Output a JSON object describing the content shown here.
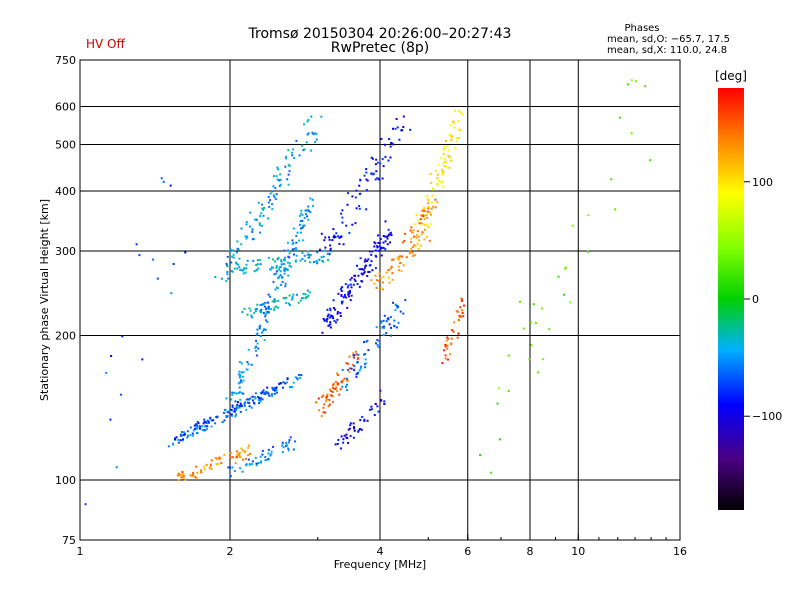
{
  "status": {
    "hv": "HV Off",
    "hv_color": "#cc0000"
  },
  "chart_data": {
    "type": "scatter",
    "title": "Tromsø 20150304 20:26:00–20:27:43",
    "subtitle": "RwPretec (8p)",
    "xlabel": "Frequency [MHz]",
    "ylabel": "Stationary phase Virtual Height [km]",
    "x_scale": "log",
    "y_scale": "log",
    "xlim": [
      1,
      16
    ],
    "ylim": [
      75,
      750
    ],
    "x_ticks": [
      {
        "value": 1,
        "label": "1"
      },
      {
        "value": 2,
        "label": "2"
      },
      {
        "value": 4,
        "label": "4"
      },
      {
        "value": 6,
        "label": "6"
      },
      {
        "value": 8,
        "label": "8"
      },
      {
        "value": 10,
        "label": "10"
      },
      {
        "value": 16,
        "label": "16"
      }
    ],
    "x_grid": [
      2,
      4,
      6,
      8,
      10
    ],
    "y_ticks": [
      {
        "value": 75,
        "label": "75"
      },
      {
        "value": 100,
        "label": "100"
      },
      {
        "value": 200,
        "label": "200"
      },
      {
        "value": 300,
        "label": "300"
      },
      {
        "value": 400,
        "label": "400"
      },
      {
        "value": 500,
        "label": "500"
      },
      {
        "value": 600,
        "label": "600"
      },
      {
        "value": 750,
        "label": "750"
      }
    ],
    "y_grid": [
      100,
      200,
      300,
      400,
      500,
      600
    ],
    "stats": {
      "heading": "Phases",
      "line1": "mean, sd,O: −65.7, 17.5",
      "line2": "mean, sd,X: 110.0, 24.8"
    },
    "colorbar": {
      "label": "[deg]",
      "range": [
        -180,
        180
      ],
      "ticks": [
        {
          "value": 100,
          "label": "100"
        },
        {
          "value": 0,
          "label": "0"
        },
        {
          "value": -100,
          "label": "−100"
        }
      ]
    },
    "series": [
      {
        "name": "trace_lower_cyan",
        "x": [
          1.5,
          2.8
        ],
        "y": [
          118,
          165
        ],
        "phase": -55,
        "count": 120,
        "spread": 0.025
      },
      {
        "name": "trace_lower_blue",
        "x": [
          1.55,
          2.6
        ],
        "y": [
          122,
          160
        ],
        "phase": -80,
        "count": 70,
        "spread": 0.02
      },
      {
        "name": "trace_mid_cyan",
        "x": [
          2.0,
          2.9
        ],
        "y": [
          140,
          380
        ],
        "phase": -50,
        "count": 160,
        "spread": 0.05
      },
      {
        "name": "trace_upper_cyan",
        "x": [
          1.9,
          3.0
        ],
        "y": [
          260,
          560
        ],
        "phase": -45,
        "count": 110,
        "spread": 0.06
      },
      {
        "name": "trace_band_280",
        "x": [
          2.0,
          3.2
        ],
        "y": [
          275,
          295
        ],
        "phase": -40,
        "count": 80,
        "spread": 0.03
      },
      {
        "name": "trace_band_230",
        "x": [
          2.1,
          2.9
        ],
        "y": [
          220,
          245
        ],
        "phase": -35,
        "count": 50,
        "spread": 0.025
      },
      {
        "name": "trace_orange_low",
        "x": [
          1.55,
          2.2
        ],
        "y": [
          100,
          115
        ],
        "phase": 130,
        "count": 70,
        "spread": 0.03
      },
      {
        "name": "trace_cyan_low",
        "x": [
          2.0,
          2.7
        ],
        "y": [
          103,
          120
        ],
        "phase": -55,
        "count": 50,
        "spread": 0.03
      },
      {
        "name": "trace_red_mid",
        "x": [
          3.0,
          3.6
        ],
        "y": [
          140,
          180
        ],
        "phase": 150,
        "count": 60,
        "spread": 0.04
      },
      {
        "name": "trace_blue_mid",
        "x": [
          3.1,
          4.2
        ],
        "y": [
          210,
          330
        ],
        "phase": -95,
        "count": 140,
        "spread": 0.05
      },
      {
        "name": "trace_blue_upper",
        "x": [
          3.1,
          4.5
        ],
        "y": [
          300,
          560
        ],
        "phase": -90,
        "count": 90,
        "spread": 0.07
      },
      {
        "name": "trace_cyan_mid",
        "x": [
          3.4,
          4.4
        ],
        "y": [
          160,
          230
        ],
        "phase": -60,
        "count": 70,
        "spread": 0.05
      },
      {
        "name": "trace_blue_low",
        "x": [
          3.3,
          4.1
        ],
        "y": [
          118,
          150
        ],
        "phase": -95,
        "count": 45,
        "spread": 0.04
      },
      {
        "name": "trace_orange_4mhz",
        "x": [
          3.9,
          5.0
        ],
        "y": [
          250,
          330
        ],
        "phase": 130,
        "count": 60,
        "spread": 0.04
      },
      {
        "name": "trace_yellow_5mhz",
        "x": [
          4.8,
          5.8
        ],
        "y": [
          330,
          580
        ],
        "phase": 95,
        "count": 80,
        "spread": 0.05
      },
      {
        "name": "trace_red_5mhz",
        "x": [
          5.4,
          5.9
        ],
        "y": [
          180,
          240
        ],
        "phase": 150,
        "count": 40,
        "spread": 0.04
      },
      {
        "name": "trace_orange_4to5",
        "x": [
          4.5,
          5.2
        ],
        "y": [
          320,
          380
        ],
        "phase": 140,
        "count": 30,
        "spread": 0.03
      },
      {
        "name": "scatter_noise_low",
        "x": [
          1.0,
          1.6
        ],
        "y": [
          100,
          400
        ],
        "phase": -70,
        "count": 20,
        "spread": 0.2
      },
      {
        "name": "scatter_noise_high",
        "x": [
          6.0,
          14.0
        ],
        "y": [
          110,
          650
        ],
        "phase": 30,
        "count": 35,
        "spread": 0.2
      }
    ]
  }
}
